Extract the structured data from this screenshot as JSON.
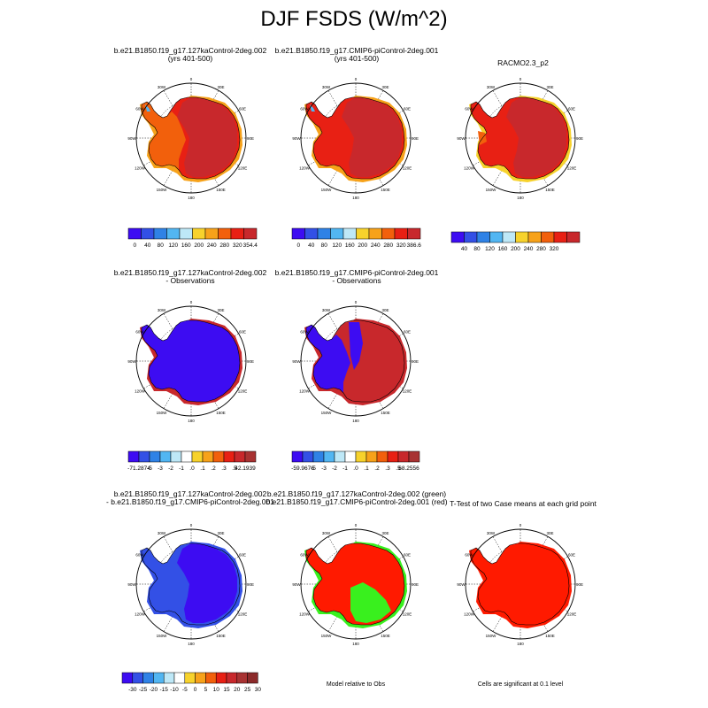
{
  "page": {
    "title": "DJF FSDS (W/m^2)"
  },
  "colors": {
    "sequential": [
      "#3d0cf2",
      "#3350e6",
      "#2f82e6",
      "#52b6f2",
      "#bee8f7",
      "#f7d22c",
      "#f7a21a",
      "#f2600c",
      "#e82014",
      "#c8282c"
    ],
    "diff": [
      "#3d0cf2",
      "#3350e6",
      "#2f82e6",
      "#52b6f2",
      "#bee8f7",
      "#ffffff",
      "#f7d22c",
      "#f7a21a",
      "#f2600c",
      "#e82014",
      "#c8282c",
      "#a83232"
    ],
    "diff3": [
      "#3d0cf2",
      "#3350e6",
      "#2f82e6",
      "#52b6f2",
      "#bee8f7",
      "#ffffff",
      "#f7d22c",
      "#f7a21a",
      "#f2600c",
      "#e82014",
      "#c8282c",
      "#a83232",
      "#8c2a2a"
    ],
    "green": "#39f01e"
  },
  "maps": {
    "meridian_labels": [
      "0",
      "30E",
      "60E",
      "90E",
      "120E",
      "150E",
      "180",
      "150W",
      "120W",
      "90W",
      "60W",
      "30W"
    ]
  },
  "chart_data": [
    {
      "type": "heatmap",
      "title_lines": [
        "b.e21.B1850.f19_g17.127kaControl-2deg.002",
        "(yrs 401-500)"
      ],
      "colorbar": {
        "labels": [
          "0",
          "40",
          "80",
          "120",
          "160",
          "200",
          "240",
          "280",
          "320",
          "354.4"
        ]
      }
    },
    {
      "type": "heatmap",
      "title_lines": [
        "b.e21.B1850.f19_g17.CMIP6-piControl-2deg.001",
        "(yrs 401-500)"
      ],
      "colorbar": {
        "labels": [
          "0",
          "40",
          "80",
          "120",
          "160",
          "200",
          "240",
          "280",
          "320",
          "386.6"
        ]
      }
    },
    {
      "type": "heatmap",
      "title_lines": [
        "RACMO2.3_p2"
      ],
      "colorbar": {
        "labels": [
          "40",
          "80",
          "120",
          "160",
          "200",
          "240",
          "280",
          "320"
        ]
      }
    },
    {
      "type": "heatmap",
      "title_lines": [
        "b.e21.B1850.f19_g17.127kaControl-2deg.002",
        "- Observations"
      ],
      "colorbar": {
        "labels": [
          "-71.2874",
          "-5",
          "-3",
          "-2",
          "-1",
          ".0",
          ".1",
          ".2",
          ".3",
          ".5",
          "42.1939"
        ]
      }
    },
    {
      "type": "heatmap",
      "title_lines": [
        "b.e21.B1850.f19_g17.CMIP6-piControl-2deg.001",
        "- Observations"
      ],
      "colorbar": {
        "labels": [
          "-59.9676",
          "-5",
          "-3",
          "-2",
          "-1",
          ".0",
          ".1",
          ".2",
          ".3",
          ".5",
          "68.2556"
        ]
      }
    },
    {
      "type": "heatmap",
      "title_lines": [
        "b.e21.B1850.f19_g17.127kaControl-2deg.002",
        "- b.e21.B1850.f19_g17.CMIP6-piControl-2deg.001"
      ],
      "colorbar": {
        "labels": [
          "-30",
          "-25",
          "-20",
          "-15",
          "-10",
          "-5",
          "0",
          "5",
          "10",
          "15",
          "20",
          "25",
          "30"
        ]
      }
    },
    {
      "type": "heatmap",
      "title_lines": [
        "b.e21.B1850.f19_g17.127kaControl-2deg.002 (green)",
        "b.e21.B1850.f19_g17.CMIP6-piControl-2deg.001 (red)"
      ],
      "note": "Model relative to Obs"
    },
    {
      "type": "heatmap",
      "title_lines": [
        "T-Test of two Case means at each grid point"
      ],
      "note": "Cells are significant at 0.1 level"
    }
  ]
}
